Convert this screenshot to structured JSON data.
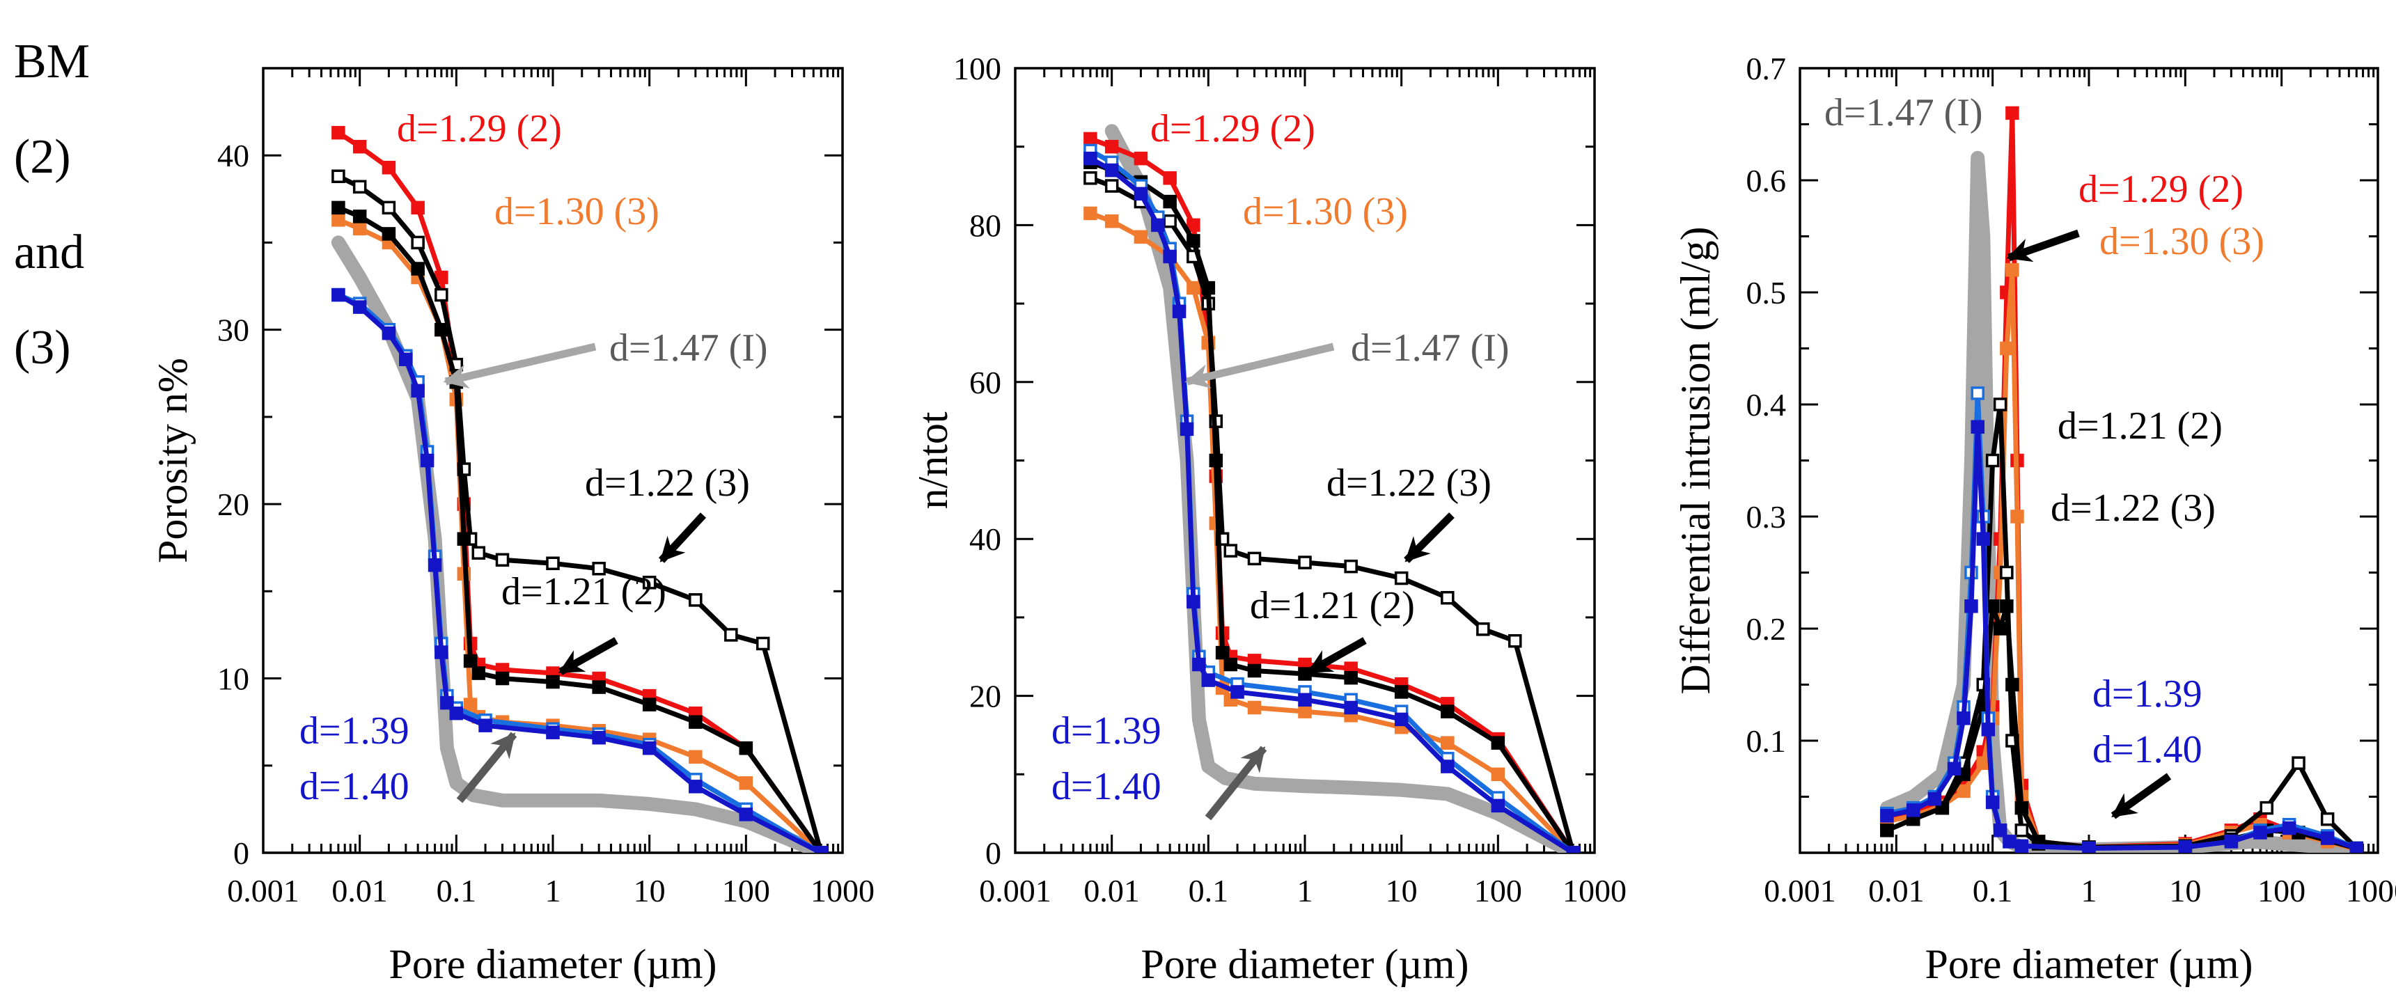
{
  "figure_label": [
    "BM",
    "(2)",
    "and",
    "(3)"
  ],
  "chart_data": [
    {
      "type": "line",
      "title": "",
      "xlabel": "Pore diameter (µm)",
      "ylabel": "Porosity n%",
      "xscale": "log",
      "xlim": [
        0.001,
        1000
      ],
      "ylim": [
        0,
        45
      ],
      "xticks": [
        0.001,
        0.01,
        0.1,
        1,
        10,
        100,
        1000
      ],
      "xtick_labels": [
        "0.001",
        "0.01",
        "0.1",
        "1",
        "10",
        "100",
        "1000"
      ],
      "yticks": [
        0,
        10,
        20,
        30,
        40
      ],
      "ytick_labels": [
        "0",
        "10",
        "20",
        "30",
        "40"
      ],
      "series": [
        {
          "name": "d=1.47 (I)",
          "color": "#a6a6a6",
          "x": [
            0.006,
            0.01,
            0.02,
            0.04,
            0.06,
            0.08,
            0.1,
            0.15,
            0.3,
            1,
            3,
            10,
            30,
            100,
            600
          ],
          "y": [
            35,
            33,
            30,
            26,
            18,
            6,
            4,
            3.3,
            3,
            3,
            3,
            2.8,
            2.5,
            1.8,
            0
          ]
        },
        {
          "name": "d=1.29 (2)",
          "color": "#ee1111",
          "x": [
            0.006,
            0.01,
            0.02,
            0.04,
            0.07,
            0.1,
            0.12,
            0.14,
            0.17,
            0.3,
            1,
            3,
            10,
            30,
            100,
            600
          ],
          "y": [
            41.3,
            40.5,
            39.3,
            37,
            33,
            27,
            20,
            12,
            10.8,
            10.5,
            10.3,
            10,
            9,
            8,
            6,
            0
          ]
        },
        {
          "name": "d=1.30 (3)",
          "color": "#f07a2e",
          "x": [
            0.006,
            0.01,
            0.02,
            0.04,
            0.07,
            0.1,
            0.12,
            0.14,
            0.17,
            0.3,
            1,
            3,
            10,
            30,
            100,
            600
          ],
          "y": [
            36.3,
            35.8,
            35,
            33,
            30,
            26,
            16,
            8.5,
            7.8,
            7.5,
            7.3,
            7,
            6.5,
            5.5,
            4,
            0
          ]
        },
        {
          "name": "d=1.22 (3)",
          "color": "#000000",
          "hollow": true,
          "x": [
            0.006,
            0.01,
            0.02,
            0.04,
            0.07,
            0.1,
            0.12,
            0.14,
            0.17,
            0.3,
            1,
            3,
            10,
            30,
            70,
            150,
            600
          ],
          "y": [
            38.8,
            38.2,
            37,
            35,
            32,
            28,
            22,
            18,
            17.2,
            16.8,
            16.6,
            16.3,
            15.5,
            14.5,
            12.5,
            12,
            0
          ]
        },
        {
          "name": "d=1.21 (2)",
          "color": "#000000",
          "x": [
            0.006,
            0.01,
            0.02,
            0.04,
            0.07,
            0.1,
            0.12,
            0.14,
            0.17,
            0.3,
            1,
            3,
            10,
            30,
            100,
            600
          ],
          "y": [
            37,
            36.5,
            35.5,
            33.5,
            30,
            27,
            18,
            11,
            10.3,
            10,
            9.8,
            9.5,
            8.5,
            7.5,
            6,
            0
          ]
        },
        {
          "name": "d=1.40",
          "color": "#1a6fe0",
          "hollow": true,
          "x": [
            0.006,
            0.01,
            0.02,
            0.03,
            0.04,
            0.05,
            0.06,
            0.07,
            0.08,
            0.1,
            0.2,
            1,
            3,
            10,
            30,
            100,
            600
          ],
          "y": [
            32,
            31.5,
            30,
            28.5,
            27,
            23,
            17,
            12,
            9,
            8.3,
            7.6,
            7.1,
            6.8,
            6.2,
            4.2,
            2.5,
            0
          ]
        },
        {
          "name": "d=1.39",
          "color": "#1414c8",
          "x": [
            0.006,
            0.01,
            0.02,
            0.03,
            0.04,
            0.05,
            0.06,
            0.07,
            0.08,
            0.1,
            0.2,
            1,
            3,
            10,
            30,
            100,
            600
          ],
          "y": [
            32,
            31.3,
            29.8,
            28.3,
            26.5,
            22.5,
            16.5,
            11.5,
            8.6,
            8,
            7.3,
            6.9,
            6.6,
            6,
            3.8,
            2.2,
            0
          ]
        }
      ],
      "annotations": [
        "d=1.29 (2)",
        "d=1.30 (3)",
        "d=1.47 (I)",
        "d=1.22 (3)",
        "d=1.21 (2)",
        "d=1.39",
        "d=1.40"
      ]
    },
    {
      "type": "line",
      "title": "",
      "xlabel": "Pore diameter (µm)",
      "ylabel": "n/ntot",
      "xscale": "log",
      "xlim": [
        0.001,
        1000
      ],
      "ylim": [
        0,
        100
      ],
      "xticks": [
        0.001,
        0.01,
        0.1,
        1,
        10,
        100,
        1000
      ],
      "xtick_labels": [
        "0.001",
        "0.01",
        "0.1",
        "1",
        "10",
        "100",
        "1000"
      ],
      "yticks": [
        0,
        20,
        40,
        60,
        80,
        100
      ],
      "ytick_labels": [
        "0",
        "20",
        "40",
        "60",
        "80",
        "100"
      ],
      "series": [
        {
          "name": "d=1.47 (I)",
          "color": "#a6a6a6",
          "x": [
            0.01,
            0.02,
            0.04,
            0.06,
            0.08,
            0.1,
            0.15,
            0.3,
            1,
            3,
            10,
            30,
            100,
            600
          ],
          "y": [
            92,
            85,
            72,
            50,
            17,
            11,
            9.5,
            8.8,
            8.5,
            8.3,
            8,
            7.5,
            5,
            0
          ]
        },
        {
          "name": "d=1.29 (2)",
          "color": "#ee1111",
          "x": [
            0.006,
            0.01,
            0.02,
            0.04,
            0.07,
            0.1,
            0.12,
            0.14,
            0.17,
            0.3,
            1,
            3,
            10,
            30,
            100,
            600
          ],
          "y": [
            91,
            90,
            88.5,
            86,
            80,
            65,
            48,
            28,
            25,
            24.5,
            24,
            23.5,
            21.5,
            19,
            14.5,
            0
          ]
        },
        {
          "name": "d=1.30 (3)",
          "color": "#f07a2e",
          "x": [
            0.006,
            0.01,
            0.02,
            0.04,
            0.07,
            0.1,
            0.12,
            0.14,
            0.17,
            0.3,
            1,
            3,
            10,
            30,
            100,
            600
          ],
          "y": [
            81.5,
            80.5,
            78.5,
            76,
            72,
            65,
            42,
            21,
            19.5,
            18.5,
            18,
            17.5,
            16,
            14,
            10,
            0
          ]
        },
        {
          "name": "d=1.22 (3)",
          "color": "#000000",
          "hollow": true,
          "x": [
            0.006,
            0.01,
            0.02,
            0.04,
            0.07,
            0.1,
            0.12,
            0.14,
            0.17,
            0.3,
            1,
            3,
            10,
            30,
            70,
            150,
            600
          ],
          "y": [
            86,
            85,
            83,
            80.5,
            76,
            70,
            55,
            40,
            38.5,
            37.5,
            37,
            36.5,
            35,
            32.5,
            28.5,
            27,
            0
          ]
        },
        {
          "name": "d=1.21 (2)",
          "color": "#000000",
          "x": [
            0.006,
            0.01,
            0.02,
            0.04,
            0.07,
            0.1,
            0.12,
            0.14,
            0.17,
            0.3,
            1,
            3,
            10,
            30,
            100,
            600
          ],
          "y": [
            88,
            87,
            85.5,
            83,
            78,
            72,
            50,
            25.5,
            24,
            23.2,
            22.8,
            22.3,
            20.5,
            18,
            14,
            0
          ]
        },
        {
          "name": "d=1.40",
          "color": "#1a6fe0",
          "hollow": true,
          "x": [
            0.006,
            0.01,
            0.02,
            0.03,
            0.04,
            0.05,
            0.06,
            0.07,
            0.08,
            0.1,
            0.2,
            1,
            3,
            10,
            30,
            100,
            600
          ],
          "y": [
            89.5,
            88,
            85,
            81,
            77,
            70,
            55,
            33,
            25,
            23,
            21.5,
            20.5,
            19.5,
            18,
            12,
            7,
            0
          ]
        },
        {
          "name": "d=1.39",
          "color": "#1414c8",
          "x": [
            0.006,
            0.01,
            0.02,
            0.03,
            0.04,
            0.05,
            0.06,
            0.07,
            0.08,
            0.1,
            0.2,
            1,
            3,
            10,
            30,
            100,
            600
          ],
          "y": [
            88.5,
            87,
            84,
            80,
            76,
            69,
            54,
            32,
            24,
            22,
            20.5,
            19.5,
            18.5,
            17,
            11,
            6,
            0
          ]
        }
      ],
      "annotations": [
        "d=1.29 (2)",
        "d=1.30 (3)",
        "d=1.47 (I)",
        "d=1.22 (3)",
        "d=1.21 (2)",
        "d=1.39",
        "d=1.40"
      ]
    },
    {
      "type": "line",
      "title": "",
      "xlabel": "Pore diameter (µm)",
      "ylabel": "Differential intrusion (ml/g)",
      "xscale": "log",
      "xlim": [
        0.001,
        1000
      ],
      "ylim": [
        0,
        0.7
      ],
      "xticks": [
        0.001,
        0.01,
        0.1,
        1,
        10,
        100,
        1000
      ],
      "xtick_labels": [
        "0.001",
        "0.01",
        "0.1",
        "1",
        "10",
        "100",
        "1000"
      ],
      "yticks": [
        0.1,
        0.2,
        0.3,
        0.4,
        0.5,
        0.6,
        0.7
      ],
      "ytick_labels": [
        "0.1",
        "0.2",
        "0.3",
        "0.4",
        "0.5",
        "0.6",
        "0.7"
      ],
      "series": [
        {
          "name": "d=1.47 (I)",
          "color": "#a6a6a6",
          "x": [
            0.008,
            0.015,
            0.03,
            0.05,
            0.06,
            0.07,
            0.08,
            0.09,
            0.1,
            0.12,
            0.15,
            0.2,
            1,
            10,
            50,
            600
          ],
          "y": [
            0.04,
            0.05,
            0.07,
            0.15,
            0.35,
            0.62,
            0.55,
            0.3,
            0.1,
            0.02,
            0.01,
            0.005,
            0.003,
            0.005,
            0.01,
            0.003
          ]
        },
        {
          "name": "d=1.29 (2)",
          "color": "#ee1111",
          "x": [
            0.008,
            0.015,
            0.03,
            0.05,
            0.08,
            0.1,
            0.12,
            0.14,
            0.16,
            0.18,
            0.2,
            0.3,
            1,
            10,
            30,
            60,
            120,
            300,
            600
          ],
          "y": [
            0.03,
            0.035,
            0.045,
            0.06,
            0.09,
            0.13,
            0.28,
            0.5,
            0.66,
            0.35,
            0.06,
            0.01,
            0.005,
            0.008,
            0.02,
            0.03,
            0.02,
            0.012,
            0.003
          ]
        },
        {
          "name": "d=1.30 (3)",
          "color": "#f07a2e",
          "x": [
            0.008,
            0.015,
            0.03,
            0.05,
            0.08,
            0.1,
            0.12,
            0.14,
            0.16,
            0.18,
            0.2,
            0.3,
            1,
            10,
            30,
            60,
            120,
            300,
            600
          ],
          "y": [
            0.028,
            0.033,
            0.042,
            0.055,
            0.08,
            0.12,
            0.25,
            0.45,
            0.52,
            0.3,
            0.05,
            0.01,
            0.005,
            0.007,
            0.018,
            0.025,
            0.018,
            0.01,
            0.003
          ]
        },
        {
          "name": "d=1.22 (3)",
          "color": "#000000",
          "hollow": true,
          "x": [
            0.008,
            0.015,
            0.03,
            0.05,
            0.08,
            0.1,
            0.12,
            0.14,
            0.16,
            0.2,
            0.3,
            1,
            10,
            30,
            70,
            150,
            300,
            600
          ],
          "y": [
            0.02,
            0.03,
            0.04,
            0.08,
            0.15,
            0.35,
            0.4,
            0.25,
            0.1,
            0.02,
            0.008,
            0.004,
            0.006,
            0.015,
            0.04,
            0.08,
            0.03,
            0.004
          ]
        },
        {
          "name": "d=1.21 (2)",
          "color": "#000000",
          "x": [
            0.008,
            0.015,
            0.03,
            0.05,
            0.08,
            0.1,
            0.12,
            0.14,
            0.16,
            0.2,
            0.3,
            1,
            10,
            30,
            70,
            150,
            600
          ],
          "y": [
            0.02,
            0.03,
            0.04,
            0.07,
            0.13,
            0.22,
            0.2,
            0.22,
            0.15,
            0.04,
            0.01,
            0.005,
            0.006,
            0.012,
            0.02,
            0.018,
            0.004
          ]
        },
        {
          "name": "d=1.40",
          "color": "#1a6fe0",
          "hollow": true,
          "x": [
            0.008,
            0.015,
            0.025,
            0.04,
            0.05,
            0.06,
            0.07,
            0.08,
            0.09,
            0.1,
            0.12,
            0.15,
            0.2,
            1,
            10,
            30,
            60,
            120,
            300,
            600
          ],
          "y": [
            0.035,
            0.04,
            0.05,
            0.08,
            0.13,
            0.25,
            0.41,
            0.3,
            0.12,
            0.05,
            0.02,
            0.01,
            0.006,
            0.004,
            0.005,
            0.01,
            0.02,
            0.025,
            0.015,
            0.004
          ]
        },
        {
          "name": "d=1.39",
          "color": "#1414c8",
          "x": [
            0.008,
            0.015,
            0.025,
            0.04,
            0.05,
            0.06,
            0.07,
            0.08,
            0.09,
            0.1,
            0.12,
            0.15,
            0.2,
            1,
            10,
            30,
            60,
            120,
            300,
            600
          ],
          "y": [
            0.033,
            0.038,
            0.048,
            0.075,
            0.12,
            0.22,
            0.38,
            0.28,
            0.11,
            0.045,
            0.02,
            0.01,
            0.006,
            0.004,
            0.005,
            0.01,
            0.018,
            0.022,
            0.013,
            0.004
          ]
        }
      ],
      "annotations": [
        "d=1.47 (I)",
        "d=1.29 (2)",
        "d=1.30 (3)",
        "d=1.21 (2)",
        "d=1.22 (3)",
        "d=1.39",
        "d=1.40"
      ]
    }
  ]
}
